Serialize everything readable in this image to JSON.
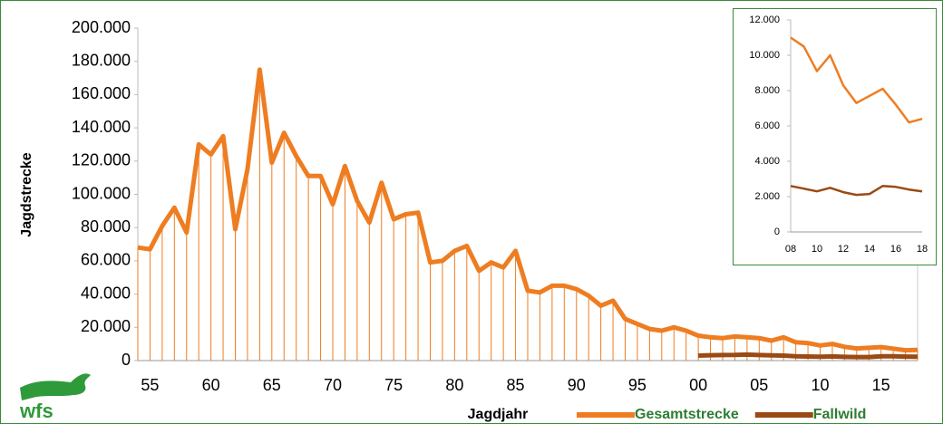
{
  "chart_data": [
    {
      "type": "line",
      "x_label": "Jagdjahr",
      "y_label": "Jagdstrecke",
      "drop_lines": true,
      "legend": "bottom-right",
      "categories": [
        null,
        "55",
        null,
        null,
        null,
        null,
        "60",
        null,
        null,
        null,
        null,
        "65",
        null,
        null,
        null,
        null,
        "70",
        null,
        null,
        null,
        null,
        "75",
        null,
        null,
        null,
        null,
        "80",
        null,
        null,
        null,
        null,
        "85",
        null,
        null,
        null,
        null,
        "90",
        null,
        null,
        null,
        null,
        "95",
        null,
        null,
        null,
        null,
        "00",
        null,
        null,
        null,
        null,
        "05",
        null,
        null,
        null,
        null,
        "10",
        null,
        null,
        null,
        null,
        "15",
        null,
        null,
        null
      ],
      "series": [
        {
          "name": "Gesamtstrecke",
          "color": "#ee7d22",
          "values": [
            68000,
            67000,
            81000,
            92000,
            77000,
            130000,
            124000,
            135000,
            79000,
            115000,
            175000,
            119000,
            137000,
            123000,
            111000,
            111000,
            94000,
            117000,
            96000,
            83000,
            107000,
            85000,
            88000,
            89000,
            59000,
            60000,
            66000,
            69000,
            54000,
            59000,
            56000,
            66000,
            42000,
            41000,
            45000,
            45000,
            43000,
            39000,
            33000,
            36000,
            25000,
            22000,
            19000,
            18000,
            20000,
            18000,
            15000,
            14000,
            13500,
            14500,
            14000,
            13500,
            12000,
            14000,
            11000,
            10500,
            9100,
            10000,
            8300,
            7300,
            7700,
            8100,
            7200,
            6200,
            6400
          ]
        },
        {
          "name": "Fallwild",
          "color": "#9a4a14",
          "values": [
            null,
            null,
            null,
            null,
            null,
            null,
            null,
            null,
            null,
            null,
            null,
            null,
            null,
            null,
            null,
            null,
            null,
            null,
            null,
            null,
            null,
            null,
            null,
            null,
            null,
            null,
            null,
            null,
            null,
            null,
            null,
            null,
            null,
            null,
            null,
            null,
            null,
            null,
            null,
            null,
            null,
            null,
            null,
            null,
            null,
            null,
            3000,
            3200,
            3300,
            3400,
            3600,
            3300,
            3100,
            3000,
            2600,
            2450,
            2300,
            2500,
            2250,
            2100,
            2150,
            2600,
            2550,
            2400,
            2300
          ]
        }
      ],
      "ylim": [
        0,
        200000
      ],
      "yticks": [
        0,
        {
          "value": 20000,
          "label": "20.000"
        },
        {
          "value": 40000,
          "label": "40.000"
        },
        {
          "value": 60000,
          "label": "60.000"
        },
        {
          "value": 80000,
          "label": "80.000"
        },
        {
          "value": 100000,
          "label": "100.000"
        },
        {
          "value": 120000,
          "label": "120.000"
        },
        {
          "value": 140000,
          "label": "140.000"
        },
        {
          "value": 160000,
          "label": "160.000"
        },
        {
          "value": 180000,
          "label": "180.000"
        },
        {
          "value": 200000,
          "label": "200.000"
        }
      ]
    },
    {
      "type": "line",
      "drop_lines": false,
      "categories": [
        "08",
        null,
        "10",
        null,
        "12",
        null,
        "14",
        null,
        "16",
        null,
        "18"
      ],
      "series": [
        {
          "color": "#ee7d22",
          "values": [
            11000,
            10500,
            9100,
            10000,
            8300,
            7300,
            7700,
            8100,
            7200,
            6200,
            6400
          ]
        },
        {
          "color": "#9a4a14",
          "values": [
            2600,
            2450,
            2300,
            2500,
            2250,
            2100,
            2150,
            2600,
            2550,
            2400,
            2300
          ]
        }
      ],
      "ylim": [
        0,
        12000
      ],
      "yticks": [
        0,
        {
          "value": 2000,
          "label": "2.000"
        },
        {
          "value": 4000,
          "label": "4.000"
        },
        {
          "value": 6000,
          "label": "6.000"
        },
        {
          "value": 8000,
          "label": "8.000"
        },
        {
          "value": 10000,
          "label": "10.000"
        },
        {
          "value": 12000,
          "label": "12.000"
        }
      ]
    }
  ],
  "logo": "wfs"
}
